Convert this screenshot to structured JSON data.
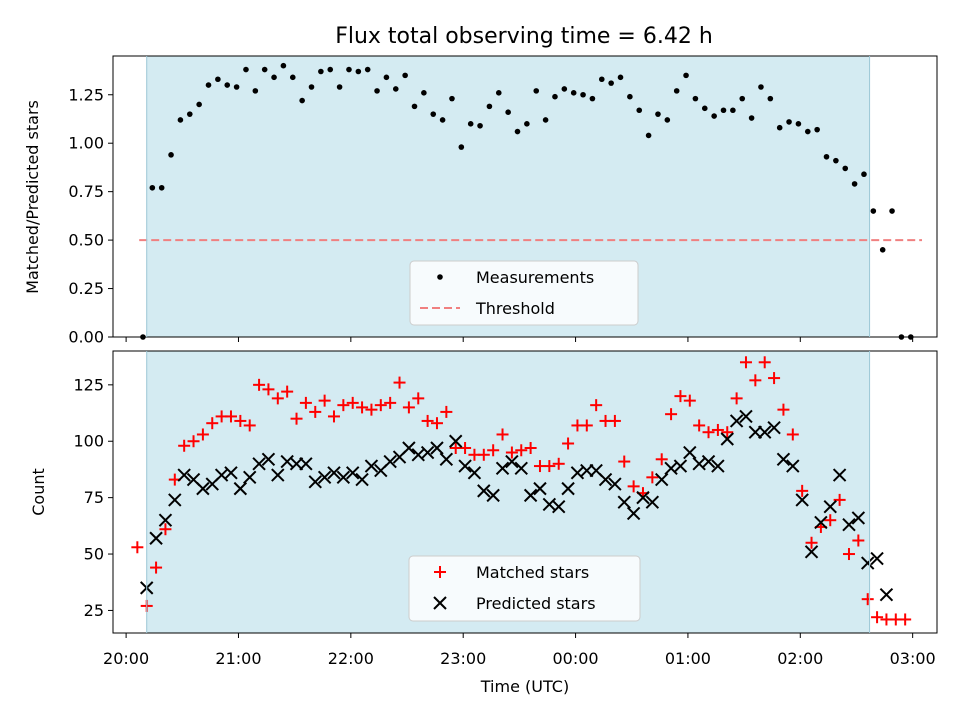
{
  "chart_data": [
    {
      "type": "scatter",
      "title": "Flux total observing time = 6.42 h",
      "xlabel": "",
      "ylabel": "Matched/Predicted stars",
      "xlim": [
        "19:53",
        "03:13"
      ],
      "ylim": [
        0,
        1.45
      ],
      "yticks": [
        0.0,
        0.25,
        0.5,
        0.75,
        1.0,
        1.25
      ],
      "ytick_labels": [
        "0.00",
        "0.25",
        "0.50",
        "0.75",
        "1.00",
        "1.25"
      ],
      "shaded_span": [
        "20:11",
        "02:37"
      ],
      "shade_color": "#add8e6",
      "threshold": {
        "y": 0.5,
        "x_start": "20:07",
        "x_end": "03:05",
        "color": "#f08080"
      },
      "legend": {
        "placement": "lower center",
        "entries": [
          "Measurements",
          "Threshold"
        ]
      },
      "series": [
        {
          "name": "Measurements",
          "color": "#000000",
          "marker": "dot",
          "x": [
            "20:09",
            "20:14",
            "20:19",
            "20:24",
            "20:29",
            "20:34",
            "20:39",
            "20:44",
            "20:49",
            "20:54",
            "20:59",
            "21:04",
            "21:09",
            "21:14",
            "21:19",
            "21:24",
            "21:29",
            "21:34",
            "21:39",
            "21:44",
            "21:49",
            "21:54",
            "21:59",
            "22:04",
            "22:09",
            "22:14",
            "22:19",
            "22:24",
            "22:29",
            "22:34",
            "22:39",
            "22:44",
            "22:49",
            "22:54",
            "22:59",
            "23:04",
            "23:09",
            "23:14",
            "23:19",
            "23:24",
            "23:29",
            "23:34",
            "23:39",
            "23:44",
            "23:49",
            "23:54",
            "23:59",
            "00:04",
            "00:09",
            "00:14",
            "00:19",
            "00:24",
            "00:29",
            "00:34",
            "00:39",
            "00:44",
            "00:49",
            "00:54",
            "00:59",
            "01:04",
            "01:09",
            "01:14",
            "01:19",
            "01:24",
            "01:29",
            "01:34",
            "01:39",
            "01:44",
            "01:49",
            "01:54",
            "01:59",
            "02:04",
            "02:09",
            "02:14",
            "02:19",
            "02:24",
            "02:29",
            "02:34",
            "02:39",
            "02:44",
            "02:49",
            "02:54",
            "02:59"
          ],
          "y": [
            0.0,
            0.77,
            0.77,
            0.94,
            1.12,
            1.15,
            1.2,
            1.3,
            1.33,
            1.3,
            1.29,
            1.38,
            1.27,
            1.38,
            1.34,
            1.4,
            1.34,
            1.22,
            1.29,
            1.37,
            1.38,
            1.29,
            1.38,
            1.37,
            1.38,
            1.27,
            1.34,
            1.28,
            1.35,
            1.19,
            1.26,
            1.15,
            1.12,
            1.23,
            0.98,
            1.1,
            1.09,
            1.19,
            1.26,
            1.16,
            1.06,
            1.1,
            1.27,
            1.12,
            1.24,
            1.28,
            1.26,
            1.25,
            1.23,
            1.33,
            1.31,
            1.34,
            1.24,
            1.17,
            1.04,
            1.15,
            1.12,
            1.27,
            1.35,
            1.23,
            1.18,
            1.14,
            1.17,
            1.17,
            1.23,
            1.13,
            1.29,
            1.23,
            1.08,
            1.11,
            1.1,
            1.06,
            1.07,
            0.93,
            0.91,
            0.87,
            0.79,
            0.84,
            0.65,
            0.45,
            0.65,
            0.0,
            0.0
          ]
        }
      ]
    },
    {
      "type": "scatter",
      "title": "",
      "xlabel": "Time (UTC)",
      "ylabel": "Count",
      "xlim": [
        "19:53",
        "03:13"
      ],
      "ylim": [
        15,
        140
      ],
      "yticks": [
        25,
        50,
        75,
        100,
        125
      ],
      "ytick_labels": [
        "25",
        "50",
        "75",
        "100",
        "125"
      ],
      "xticks": [
        "20:00",
        "21:00",
        "22:00",
        "23:00",
        "00:00",
        "01:00",
        "02:00",
        "03:00"
      ],
      "xtick_labels": [
        "20:00",
        "21:00",
        "22:00",
        "23:00",
        "00:00",
        "01:00",
        "02:00",
        "03:00"
      ],
      "shaded_span": [
        "20:11",
        "02:37"
      ],
      "shade_color": "#add8e6",
      "legend": {
        "placement": "lower center",
        "entries": [
          "Matched stars",
          "Predicted stars"
        ]
      },
      "series": [
        {
          "name": "Matched stars",
          "color": "#ff0000",
          "marker": "plus",
          "x": [
            "20:06",
            "20:11",
            "20:16",
            "20:21",
            "20:26",
            "20:31",
            "20:36",
            "20:41",
            "20:46",
            "20:51",
            "20:56",
            "21:01",
            "21:06",
            "21:11",
            "21:16",
            "21:21",
            "21:26",
            "21:31",
            "21:36",
            "21:41",
            "21:46",
            "21:51",
            "21:56",
            "22:01",
            "22:06",
            "22:11",
            "22:16",
            "22:21",
            "22:26",
            "22:31",
            "22:36",
            "22:41",
            "22:46",
            "22:51",
            "22:56",
            "23:01",
            "23:06",
            "23:11",
            "23:16",
            "23:21",
            "23:26",
            "23:31",
            "23:36",
            "23:41",
            "23:46",
            "23:51",
            "23:56",
            "00:01",
            "00:06",
            "00:11",
            "00:16",
            "00:21",
            "00:26",
            "00:31",
            "00:36",
            "00:41",
            "00:46",
            "00:51",
            "00:56",
            "01:01",
            "01:06",
            "01:11",
            "01:16",
            "01:21",
            "01:26",
            "01:31",
            "01:36",
            "01:41",
            "01:46",
            "01:51",
            "01:56",
            "02:01",
            "02:06",
            "02:11",
            "02:16",
            "02:21",
            "02:26",
            "02:31",
            "02:36",
            "02:41",
            "02:46",
            "02:51",
            "02:56"
          ],
          "y": [
            53,
            27,
            44,
            61,
            83,
            98,
            100,
            103,
            108,
            111,
            111,
            109,
            107,
            125,
            123,
            119,
            122,
            110,
            117,
            113,
            118,
            111,
            116,
            117,
            115,
            114,
            116,
            117,
            126,
            115,
            119,
            109,
            108,
            113,
            97,
            97,
            94,
            94,
            96,
            103,
            95,
            96,
            97,
            89,
            89,
            90,
            99,
            107,
            107,
            116,
            109,
            109,
            91,
            80,
            77,
            84,
            92,
            112,
            120,
            118,
            107,
            104,
            105,
            104,
            119,
            135,
            127,
            135,
            128,
            114,
            103,
            78,
            55,
            62,
            65,
            74,
            50,
            56,
            30,
            22,
            21,
            21,
            21
          ]
        },
        {
          "name": "Predicted stars",
          "color": "#000000",
          "marker": "x",
          "x": [
            "20:11",
            "20:16",
            "20:21",
            "20:26",
            "20:31",
            "20:36",
            "20:41",
            "20:46",
            "20:51",
            "20:56",
            "21:01",
            "21:06",
            "21:11",
            "21:16",
            "21:21",
            "21:26",
            "21:31",
            "21:36",
            "21:41",
            "21:46",
            "21:51",
            "21:56",
            "22:01",
            "22:06",
            "22:11",
            "22:16",
            "22:21",
            "22:26",
            "22:31",
            "22:36",
            "22:41",
            "22:46",
            "22:51",
            "22:56",
            "23:01",
            "23:06",
            "23:11",
            "23:16",
            "23:21",
            "23:26",
            "23:31",
            "23:36",
            "23:41",
            "23:46",
            "23:51",
            "23:56",
            "00:01",
            "00:06",
            "00:11",
            "00:16",
            "00:21",
            "00:26",
            "00:31",
            "00:36",
            "00:41",
            "00:46",
            "00:51",
            "00:56",
            "01:01",
            "01:06",
            "01:11",
            "01:16",
            "01:21",
            "01:26",
            "01:31",
            "01:36",
            "01:41",
            "01:46",
            "01:51",
            "01:56",
            "02:01",
            "02:06",
            "02:11",
            "02:16",
            "02:21",
            "02:26",
            "02:31",
            "02:36",
            "02:41",
            "02:46"
          ],
          "y": [
            35,
            57,
            65,
            74,
            85,
            83,
            79,
            81,
            85,
            86,
            79,
            84,
            90,
            92,
            85,
            91,
            90,
            90,
            82,
            84,
            86,
            84,
            86,
            83,
            89,
            87,
            91,
            93,
            97,
            94,
            95,
            97,
            92,
            100,
            89,
            86,
            78,
            76,
            88,
            91,
            88,
            76,
            79,
            72,
            71,
            79,
            86,
            87,
            87,
            83,
            81,
            73,
            68,
            75,
            73,
            83,
            88,
            89,
            95,
            90,
            91,
            89,
            101,
            109,
            111,
            104,
            104,
            106,
            92,
            89,
            74,
            51,
            64,
            71,
            85,
            63,
            66,
            46,
            48,
            32
          ]
        }
      ]
    }
  ]
}
